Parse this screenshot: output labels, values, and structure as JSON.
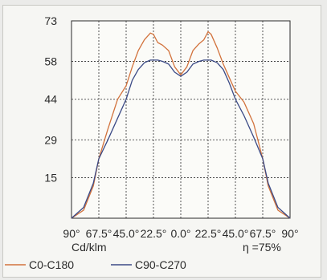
{
  "chart_data": {
    "type": "line",
    "title": "",
    "unit_label": "Cd/klm",
    "efficiency_label": "η =75%",
    "x_tick_labels": [
      "90°",
      "67.5°",
      "45.0°",
      "22.5°",
      "0.0°",
      "22.5°",
      "45.0°",
      "67.5°",
      "90°"
    ],
    "x_ticks": [
      -90,
      -67.5,
      -45,
      -22.5,
      0,
      22.5,
      45,
      67.5,
      90
    ],
    "xlim": [
      -90,
      90
    ],
    "y_ticks": [
      15,
      29,
      44,
      58,
      73
    ],
    "ylim": [
      0,
      73
    ],
    "grid": true,
    "legend_position": "bottom",
    "series": [
      {
        "name": "C0-C180",
        "color": "#d2723c",
        "x": [
          -90,
          -80,
          -72,
          -67.5,
          -60,
          -52,
          -45,
          -40,
          -35,
          -30,
          -25,
          -22.5,
          -19,
          -15,
          -10,
          -5,
          0,
          5,
          10,
          15,
          19,
          22.5,
          25,
          30,
          35,
          40,
          45,
          52,
          60,
          67.5,
          72,
          80,
          90
        ],
        "y": [
          0,
          3,
          12,
          22,
          33,
          44,
          49,
          56,
          62,
          66,
          68.5,
          68,
          65,
          64,
          62,
          56,
          53,
          56,
          62,
          64.5,
          66,
          69,
          68,
          63,
          57,
          52,
          47,
          43,
          35,
          22,
          12,
          3,
          0
        ]
      },
      {
        "name": "C90-C270",
        "color": "#3b4a86",
        "x": [
          -90,
          -80,
          -72,
          -67.5,
          -60,
          -52,
          -45,
          -40,
          -35,
          -30,
          -25,
          -22.5,
          -19,
          -15,
          -10,
          -5,
          0,
          5,
          10,
          15,
          19,
          22.5,
          25,
          30,
          35,
          40,
          45,
          52,
          60,
          67.5,
          72,
          80,
          90
        ],
        "y": [
          0,
          4,
          13,
          22,
          29,
          37,
          44,
          51,
          55,
          57.5,
          58.5,
          58.5,
          58.5,
          58,
          57,
          54,
          52.5,
          54,
          57,
          58,
          58.5,
          58.5,
          58.5,
          57.5,
          55,
          50,
          44,
          38,
          30,
          22,
          13,
          4,
          0
        ]
      }
    ]
  }
}
